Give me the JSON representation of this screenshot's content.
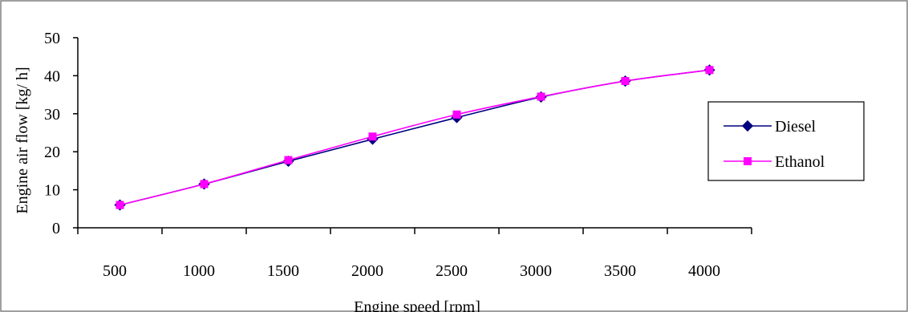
{
  "chart_data": {
    "type": "line",
    "title": "",
    "xlabel": "Engine speed [rpm]",
    "ylabel": "Engine air flow  [kg/ h]",
    "x_tick_labels": [
      "500",
      "1000",
      "1500",
      "2000",
      "2500",
      "3000",
      "3500",
      "4000"
    ],
    "ylim": [
      0,
      50
    ],
    "y_ticks": [
      0,
      10,
      20,
      30,
      40,
      50
    ],
    "grid": false,
    "legend_position": "right",
    "x": [
      500,
      1000,
      1500,
      2000,
      2500,
      3000,
      3500,
      4000
    ],
    "series": [
      {
        "name": "Diesel",
        "marker": "diamond",
        "color": "#000080",
        "values": [
          6,
          11.5,
          17.5,
          23.3,
          29,
          34.4,
          38.6,
          41.5
        ]
      },
      {
        "name": "Ethanol",
        "marker": "square",
        "color": "#FF00FF",
        "values": [
          6,
          11.5,
          17.8,
          24,
          29.8,
          34.5,
          38.6,
          41.5
        ]
      }
    ]
  }
}
